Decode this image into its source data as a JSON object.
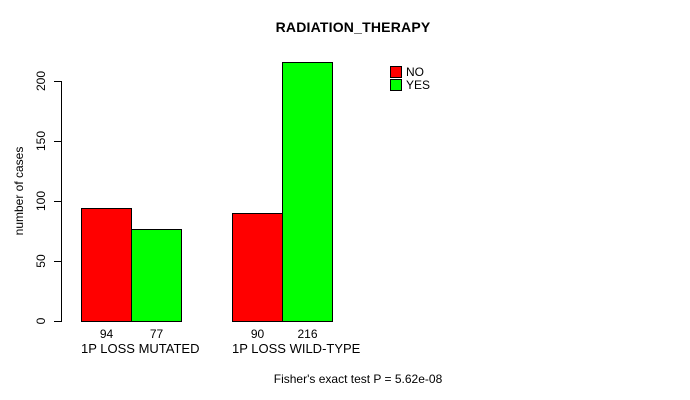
{
  "chart_data": {
    "type": "bar",
    "title": "RADIATION_THERAPY",
    "xlabel": "",
    "ylabel": "number of cases",
    "categories": [
      "1P LOSS MUTATED",
      "1P LOSS WILD-TYPE"
    ],
    "series": [
      {
        "name": "NO",
        "color": "#ff0000",
        "values": [
          94,
          90
        ]
      },
      {
        "name": "YES",
        "color": "#00ff00",
        "values": [
          77,
          216
        ]
      }
    ],
    "bar_value_labels": [
      [
        94,
        77
      ],
      [
        90,
        216
      ]
    ],
    "yticks": [
      0,
      50,
      100,
      150,
      200
    ],
    "ylim": [
      0,
      216
    ],
    "grid": false,
    "legend": {
      "position": "top-right",
      "entries": [
        {
          "label": "NO",
          "color": "#ff0000"
        },
        {
          "label": "YES",
          "color": "#00ff00"
        }
      ]
    },
    "annotation": "Fisher's exact test P = 5.62e-08"
  }
}
